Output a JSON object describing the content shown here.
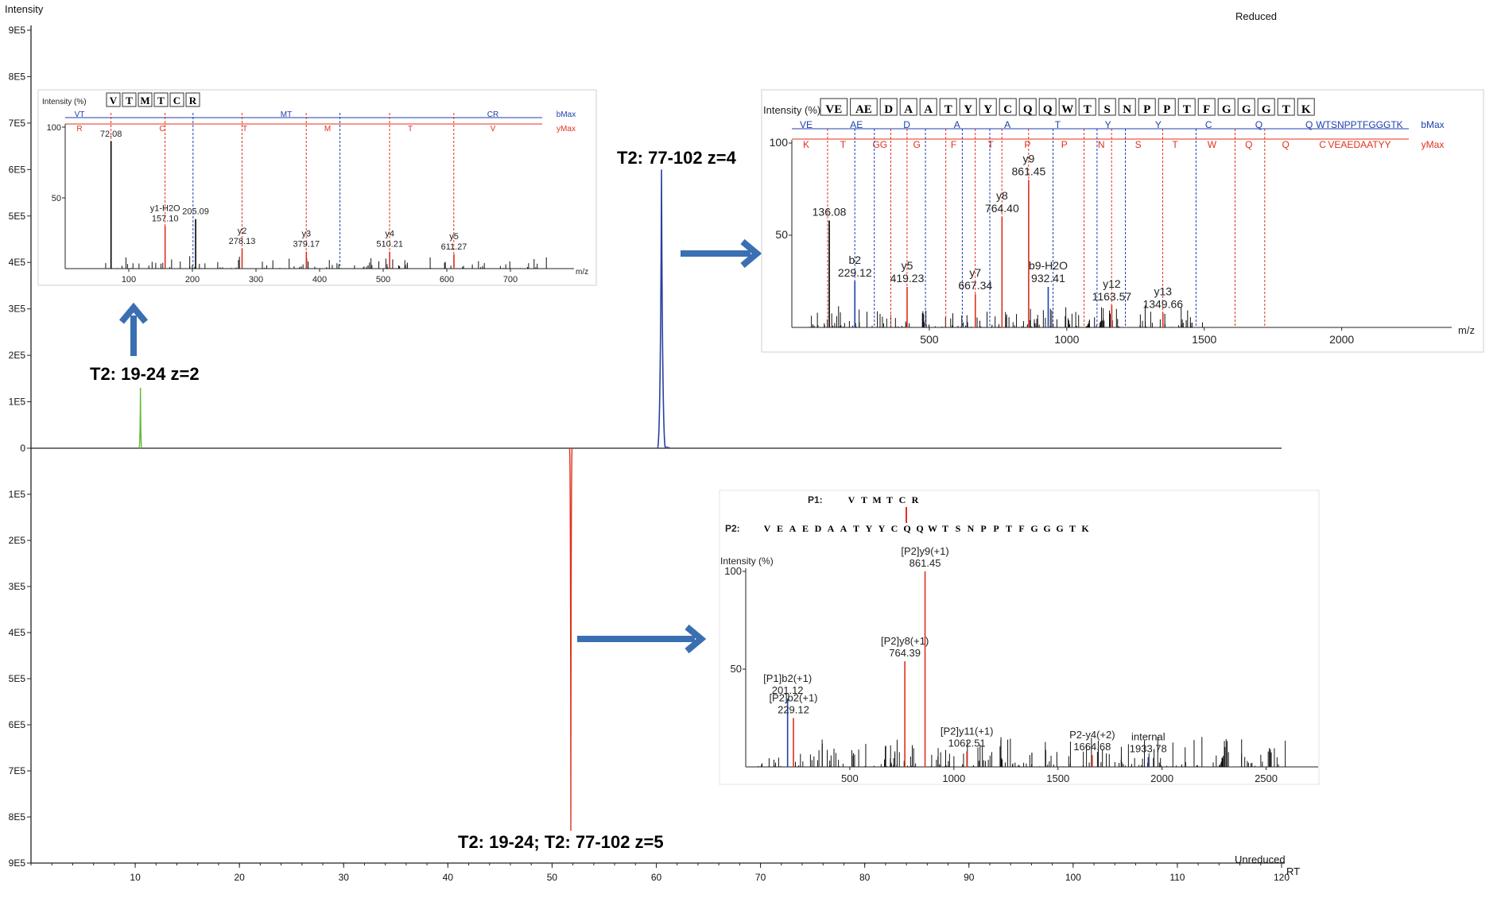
{
  "chart_data": [
    {
      "type": "line",
      "title": "",
      "ylabel": "Intensity",
      "xlabel": "RT",
      "xlim": [
        0,
        120
      ],
      "ylim": [
        -900000,
        900000
      ],
      "x_ticks": [
        10,
        20,
        30,
        40,
        50,
        60,
        70,
        80,
        90,
        100,
        110,
        120
      ],
      "y_ticks": [
        "9E5",
        "8E5",
        "7E5",
        "6E5",
        "5E5",
        "4E5",
        "3E5",
        "2E5",
        "1E5",
        "0",
        "1E5",
        "2E5",
        "3E5",
        "4E5",
        "5E5",
        "6E5",
        "7E5",
        "8E5",
        "9E5"
      ],
      "top_panel_label": "Reduced",
      "bottom_panel_label": "Unreduced",
      "series": [
        {
          "color": "#5fb832",
          "peaks": [
            {
              "rt": 10.5,
              "intensity": 130000
            }
          ]
        },
        {
          "color": "#2a3f9f",
          "peaks": [
            {
              "rt": 60.5,
              "intensity": 600000
            }
          ]
        },
        {
          "color": "#e0301e",
          "peaks": [
            {
              "rt": 51.8,
              "intensity": -830000
            }
          ]
        }
      ],
      "annotations": [
        "T2:  19-24 z=2",
        "T2:  77-102 z=4",
        "T2:  19-24; T2:  77-102   z=5"
      ]
    },
    {
      "type": "bar",
      "panel": "inset-reduced-19-24",
      "ylabel": "Intensity (%)",
      "xlabel": "m/z",
      "xlim": [
        0,
        800
      ],
      "ylim": [
        0,
        100
      ],
      "x_ticks": [
        100,
        200,
        300,
        400,
        500,
        600,
        700
      ],
      "y_ticks": [
        50,
        100
      ],
      "sequence": [
        "V",
        "T",
        "M",
        "T",
        "C",
        "R"
      ],
      "b_ion_labels": [
        "VT",
        "MT",
        "CR",
        "bMax"
      ],
      "y_ion_labels": [
        "R",
        "C",
        "T",
        "M",
        "T",
        "V",
        "yMax"
      ],
      "peaks": [
        {
          "mz": 72.08,
          "rel": 90,
          "label": "72.08",
          "color": "#000"
        },
        {
          "mz": 157.1,
          "rel": 30,
          "label": "y1-H2O\n157.10",
          "color": "#e0301e"
        },
        {
          "mz": 205.09,
          "rel": 35,
          "label": "205.09",
          "color": "#000"
        },
        {
          "mz": 278.13,
          "rel": 14,
          "label": "y2\n278.13",
          "color": "#e0301e"
        },
        {
          "mz": 379.17,
          "rel": 12,
          "label": "y3\n379.17",
          "color": "#e0301e"
        },
        {
          "mz": 510.21,
          "rel": 12,
          "label": "y4\n510.21",
          "color": "#e0301e"
        },
        {
          "mz": 611.27,
          "rel": 10,
          "label": "y5\n611.27",
          "color": "#e0301e"
        }
      ]
    },
    {
      "type": "bar",
      "panel": "inset-reduced-77-102",
      "ylabel": "Intensity (%)",
      "xlabel": "m/z",
      "xlim": [
        0,
        2400
      ],
      "ylim": [
        0,
        100
      ],
      "x_ticks": [
        500,
        1000,
        1500,
        2000
      ],
      "y_ticks": [
        50,
        100
      ],
      "sequence": [
        "VE",
        "AE",
        "D",
        "A",
        "A",
        "T",
        "Y",
        "Y",
        "C",
        "Q",
        "Q",
        "W",
        "T",
        "S",
        "N",
        "P",
        "P",
        "T",
        "F",
        "G",
        "G",
        "G",
        "T",
        "K"
      ],
      "b_ion_labels": [
        "VE",
        "AE",
        "D",
        "A",
        "A",
        "T",
        "Y",
        "Y",
        "C",
        "Q",
        "Q",
        "WTSNPPTFGGGTK",
        "bMax"
      ],
      "y_ion_labels": [
        "K",
        "T",
        "GG",
        "G",
        "F",
        "T",
        "P",
        "P",
        "N",
        "S",
        "T",
        "W",
        "Q",
        "Q",
        "C",
        "VEAEDAATYY",
        "yMax"
      ],
      "peaks": [
        {
          "mz": 136.08,
          "rel": 58,
          "label": "136.08",
          "color": "#000"
        },
        {
          "mz": 229.12,
          "rel": 25,
          "label": "b2\n229.12",
          "color": "#1f3fb0"
        },
        {
          "mz": 419.23,
          "rel": 22,
          "label": "y5\n419.23",
          "color": "#e0301e"
        },
        {
          "mz": 667.34,
          "rel": 18,
          "label": "y7\n667.34",
          "color": "#e0301e"
        },
        {
          "mz": 764.4,
          "rel": 60,
          "label": "y8\n764.40",
          "color": "#e0301e"
        },
        {
          "mz": 861.45,
          "rel": 80,
          "label": "y9\n861.45",
          "color": "#e0301e"
        },
        {
          "mz": 932.41,
          "rel": 22,
          "label": "b9-H2O\n932.41",
          "color": "#1f3fb0"
        },
        {
          "mz": 1163.57,
          "rel": 12,
          "label": "y12\n1163.57",
          "color": "#e0301e"
        },
        {
          "mz": 1349.66,
          "rel": 8,
          "label": "y13\n1349.66",
          "color": "#e0301e"
        }
      ]
    },
    {
      "type": "bar",
      "panel": "inset-unreduced",
      "ylabel": "Intensity (%)",
      "xlabel": "",
      "xlim": [
        0,
        2750
      ],
      "ylim": [
        0,
        100
      ],
      "x_ticks": [
        500,
        1000,
        1500,
        2000,
        2500
      ],
      "y_ticks": [
        50,
        100
      ],
      "p1_label": "P1:",
      "p2_label": "P2:",
      "p1_sequence": [
        "V",
        "T",
        "M",
        "T",
        "C",
        "R"
      ],
      "p2_sequence": [
        "V",
        "E",
        "A",
        "E",
        "D",
        "A",
        "A",
        "T",
        "Y",
        "Y",
        "C",
        "Q",
        "Q",
        "W",
        "T",
        "S",
        "N",
        "P",
        "P",
        "T",
        "F",
        "G",
        "G",
        "G",
        "T",
        "K"
      ],
      "peaks": [
        {
          "mz": 201.12,
          "rel": 35,
          "label": "[P1]b2(+1)\n201.12",
          "color": "#1f3fb0"
        },
        {
          "mz": 229.12,
          "rel": 25,
          "label": "[P2]b2(+1)\n229.12",
          "color": "#e0301e"
        },
        {
          "mz": 764.39,
          "rel": 54,
          "label": "[P2]y8(+1)\n764.39",
          "color": "#e0301e"
        },
        {
          "mz": 861.45,
          "rel": 100,
          "label": "[P2]y9(+1)\n861.45",
          "color": "#e0301e"
        },
        {
          "mz": 1062.51,
          "rel": 8,
          "label": "[P2]y11(+1)\n1062.51",
          "color": "#e0301e"
        },
        {
          "mz": 1664.68,
          "rel": 6,
          "label": "P2-y4(+2)\n1664.68",
          "color": "#e0301e"
        },
        {
          "mz": 1933.78,
          "rel": 5,
          "label": "internal\n1933.78",
          "color": "#1f3fb0"
        }
      ]
    }
  ],
  "colors": {
    "reduced_19_24": "#5fb832",
    "reduced_77_102": "#2a3f9f",
    "unreduced": "#e0301e",
    "arrow": "#3a6fb2",
    "b_ion": "#1f3fb0",
    "y_ion": "#e0301e"
  }
}
